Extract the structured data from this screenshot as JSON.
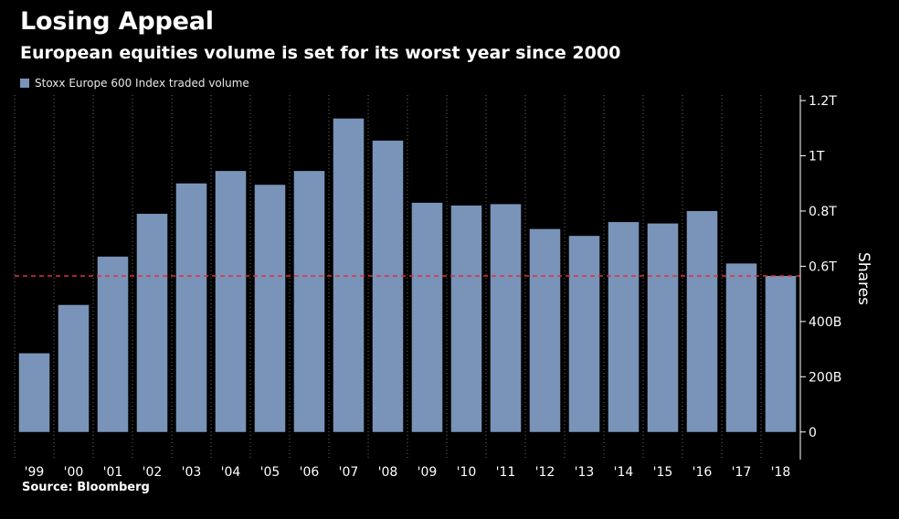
{
  "title": "Losing Appeal",
  "subtitle": "European equities volume is set for its worst year since 2000",
  "source": "Source: Bloomberg",
  "colors": {
    "background": "#000000",
    "bar": "#7a93b8",
    "reference_line": "#e0303a",
    "grid": "#6a6a6a",
    "text": "#ffffff"
  },
  "chart_data": {
    "type": "bar",
    "title": "Losing Appeal",
    "subtitle": "European equities volume is set for its worst year since 2000",
    "ylabel": "Shares",
    "legend": [
      "Stoxx Europe 600 Index traded volume"
    ],
    "legend_position": "top-left",
    "y_axis_side": "right",
    "grid": "dotted vertical",
    "categories": [
      "'99",
      "'00",
      "'01",
      "'02",
      "'03",
      "'04",
      "'05",
      "'06",
      "'07",
      "'08",
      "'09",
      "'10",
      "'11",
      "'12",
      "'13",
      "'14",
      "'15",
      "'16",
      "'17",
      "'18"
    ],
    "series": [
      {
        "name": "Stoxx Europe 600 Index traded volume",
        "values": [
          0.285,
          0.46,
          0.635,
          0.79,
          0.9,
          0.945,
          0.895,
          0.945,
          1.135,
          1.055,
          0.83,
          0.82,
          0.825,
          0.735,
          0.71,
          0.76,
          0.755,
          0.8,
          0.61,
          0.565
        ]
      }
    ],
    "reference_line": {
      "value": 0.565,
      "style": "dashed"
    },
    "ylim": [
      -0.1,
      1.22
    ],
    "yticks": [
      0,
      0.2,
      0.4,
      0.6,
      0.8,
      1.0,
      1.2
    ],
    "ytick_labels": [
      "0",
      "200B",
      "400B",
      "0.6T",
      "0.8T",
      "1T",
      "1.2T"
    ]
  }
}
